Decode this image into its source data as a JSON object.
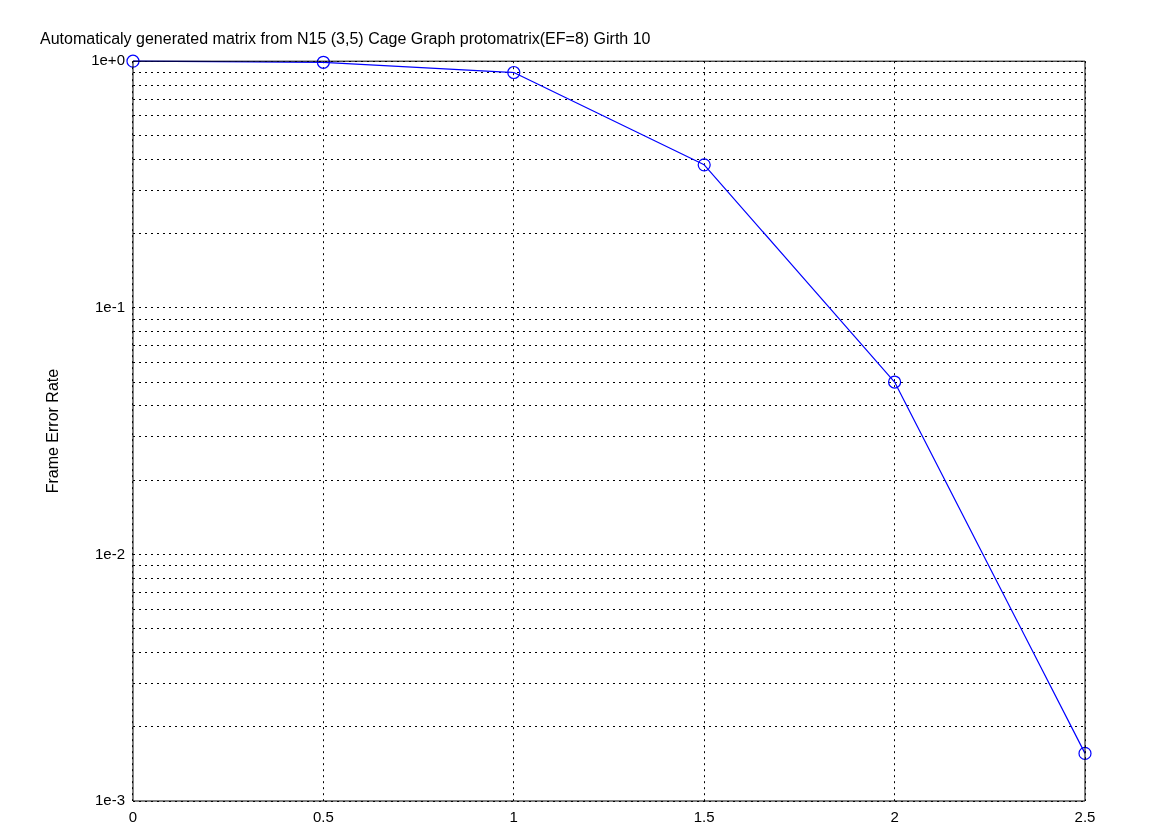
{
  "chart_data": {
    "type": "line",
    "title": "Automaticaly generated matrix from N15 (3,5) Cage Graph protomatrix(EF=8) Girth 10",
    "ylabel": "Frame Error Rate",
    "x": [
      0,
      0.5,
      1,
      1.5,
      2,
      2.5
    ],
    "series": [
      {
        "color": "#0000ff",
        "values": [
          1.0,
          0.99,
          0.9,
          0.38,
          0.05,
          0.00156
        ]
      }
    ],
    "log": "y",
    "xlim": [
      0,
      2.5
    ],
    "xticks": [
      0,
      0.5,
      1,
      1.5,
      2,
      2.5
    ],
    "ylim": [
      0.001,
      1
    ],
    "yticks": [
      {
        "value": 0.001,
        "label": "1e-3"
      },
      {
        "value": 0.002,
        "label": null
      },
      {
        "value": 0.003,
        "label": null
      },
      {
        "value": 0.004,
        "label": null
      },
      {
        "value": 0.005,
        "label": null
      },
      {
        "value": 0.006,
        "label": null
      },
      {
        "value": 0.007,
        "label": null
      },
      {
        "value": 0.008,
        "label": null
      },
      {
        "value": 0.009,
        "label": null
      },
      {
        "value": 0.01,
        "label": "1e-2"
      },
      {
        "value": 0.02,
        "label": null
      },
      {
        "value": 0.03,
        "label": null
      },
      {
        "value": 0.04,
        "label": null
      },
      {
        "value": 0.05,
        "label": null
      },
      {
        "value": 0.06,
        "label": null
      },
      {
        "value": 0.07,
        "label": null
      },
      {
        "value": 0.08,
        "label": null
      },
      {
        "value": 0.09,
        "label": null
      },
      {
        "value": 0.1,
        "label": "1e-1"
      },
      {
        "value": 0.2,
        "label": null
      },
      {
        "value": 0.3,
        "label": null
      },
      {
        "value": 0.4,
        "label": null
      },
      {
        "value": 0.5,
        "label": null
      },
      {
        "value": 0.6,
        "label": null
      },
      {
        "value": 0.7,
        "label": null
      },
      {
        "value": 0.8,
        "label": null
      },
      {
        "value": 0.9,
        "label": null
      },
      {
        "value": 1,
        "label": "1e+0"
      }
    ],
    "grid": true,
    "marker": "circle",
    "line_style": "solid",
    "legend": false
  }
}
